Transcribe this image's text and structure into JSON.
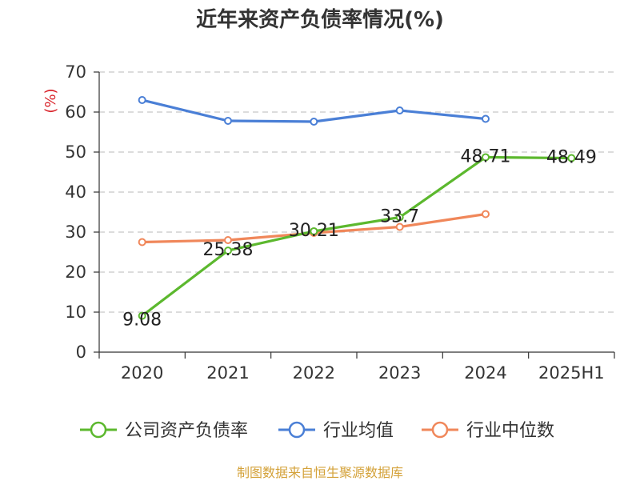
{
  "title": "近年来资产负债率情况(%)",
  "source_note": "制图数据来自恒生聚源数据库",
  "chart_data": {
    "type": "line",
    "categories": [
      "2020",
      "2021",
      "2022",
      "2023",
      "2024",
      "2025H1"
    ],
    "ylabel": "(%)",
    "ylim": [
      0,
      70
    ],
    "yticks": [
      0,
      10,
      20,
      30,
      40,
      50,
      60,
      70
    ],
    "grid": true,
    "legend_position": "bottom",
    "series": [
      {
        "name": "公司资产负债率",
        "color": "#5cb82e",
        "values": [
          9.08,
          25.38,
          30.21,
          33.7,
          48.71,
          48.49
        ],
        "labels": [
          "9.08",
          "25.38",
          "30.21",
          "33.7",
          "48.71",
          "48.49"
        ]
      },
      {
        "name": "行业均值",
        "color": "#4a7fd6",
        "values": [
          63.0,
          57.8,
          57.6,
          60.4,
          58.3,
          null
        ]
      },
      {
        "name": "行业中位数",
        "color": "#f0875a",
        "values": [
          27.5,
          28.0,
          29.8,
          31.3,
          34.5,
          null
        ]
      }
    ]
  }
}
